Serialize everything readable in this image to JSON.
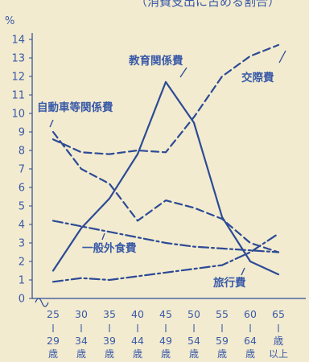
{
  "subtitle": "（消費支出に占める割合）",
  "chart_data": {
    "type": "line",
    "y_unit": "%",
    "ylim": [
      0,
      14
    ],
    "y_ticks": [
      0,
      1,
      2,
      3,
      4,
      5,
      6,
      7,
      8,
      9,
      10,
      11,
      12,
      13,
      14
    ],
    "categories": [
      [
        "25",
        "29",
        "歳"
      ],
      [
        "30",
        "34",
        "歳"
      ],
      [
        "35",
        "39",
        "歳"
      ],
      [
        "40",
        "44",
        "歳"
      ],
      [
        "45",
        "49",
        "歳"
      ],
      [
        "50",
        "54",
        "歳"
      ],
      [
        "55",
        "59",
        "歳"
      ],
      [
        "60",
        "64",
        "歳"
      ],
      [
        "65",
        "歳",
        "以上"
      ]
    ],
    "series": [
      {
        "name": "教育関係費",
        "style": "solid",
        "values": [
          1.5,
          3.8,
          5.4,
          7.8,
          11.7,
          9.5,
          4.4,
          2.0,
          1.3
        ]
      },
      {
        "name": "交際費",
        "style": "dashed",
        "values": [
          8.6,
          7.9,
          7.8,
          8.0,
          7.9,
          9.8,
          12.0,
          13.1,
          13.7
        ]
      },
      {
        "name": "自動車等関係費",
        "style": "dashed",
        "values": [
          9.0,
          7.0,
          6.2,
          4.2,
          5.3,
          4.9,
          4.3,
          3.0,
          2.5
        ]
      },
      {
        "name": "一般外食費",
        "style": "dashdot",
        "values": [
          4.2,
          3.9,
          3.6,
          3.3,
          3.0,
          2.8,
          2.7,
          2.6,
          2.5
        ]
      },
      {
        "name": "旅行費",
        "style": "dashdot",
        "values": [
          0.9,
          1.1,
          1.0,
          1.2,
          1.4,
          1.6,
          1.8,
          2.5,
          3.5
        ]
      }
    ],
    "colors": {
      "line": "#2c4a96",
      "text": "#3a5aa8",
      "background": "#f2ebcf"
    }
  }
}
